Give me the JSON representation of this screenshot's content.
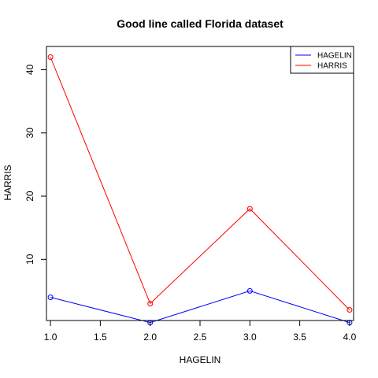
{
  "chart_data": {
    "type": "line",
    "title": "Good line called Florida dataset",
    "xlabel": "HAGELIN",
    "ylabel": "HARRIS",
    "x": [
      1,
      2,
      3,
      4
    ],
    "xlim": [
      0.96,
      4.04
    ],
    "ylim": [
      0.32,
      43.68
    ],
    "xticks": [
      1.0,
      1.5,
      2.0,
      2.5,
      3.0,
      3.5,
      4.0
    ],
    "xtick_labels": [
      "1.0",
      "1.5",
      "2.0",
      "2.5",
      "3.0",
      "3.5",
      "4.0"
    ],
    "yticks": [
      10,
      20,
      30,
      40
    ],
    "ytick_labels": [
      "10",
      "20",
      "30",
      "40"
    ],
    "grid": false,
    "legend_position": "top-right",
    "series": [
      {
        "name": "HAGELIN",
        "color": "#0000ff",
        "values": [
          4,
          0,
          5,
          0
        ]
      },
      {
        "name": "HARRIS",
        "color": "#ff0000",
        "values": [
          42,
          3,
          18,
          2
        ]
      }
    ]
  }
}
